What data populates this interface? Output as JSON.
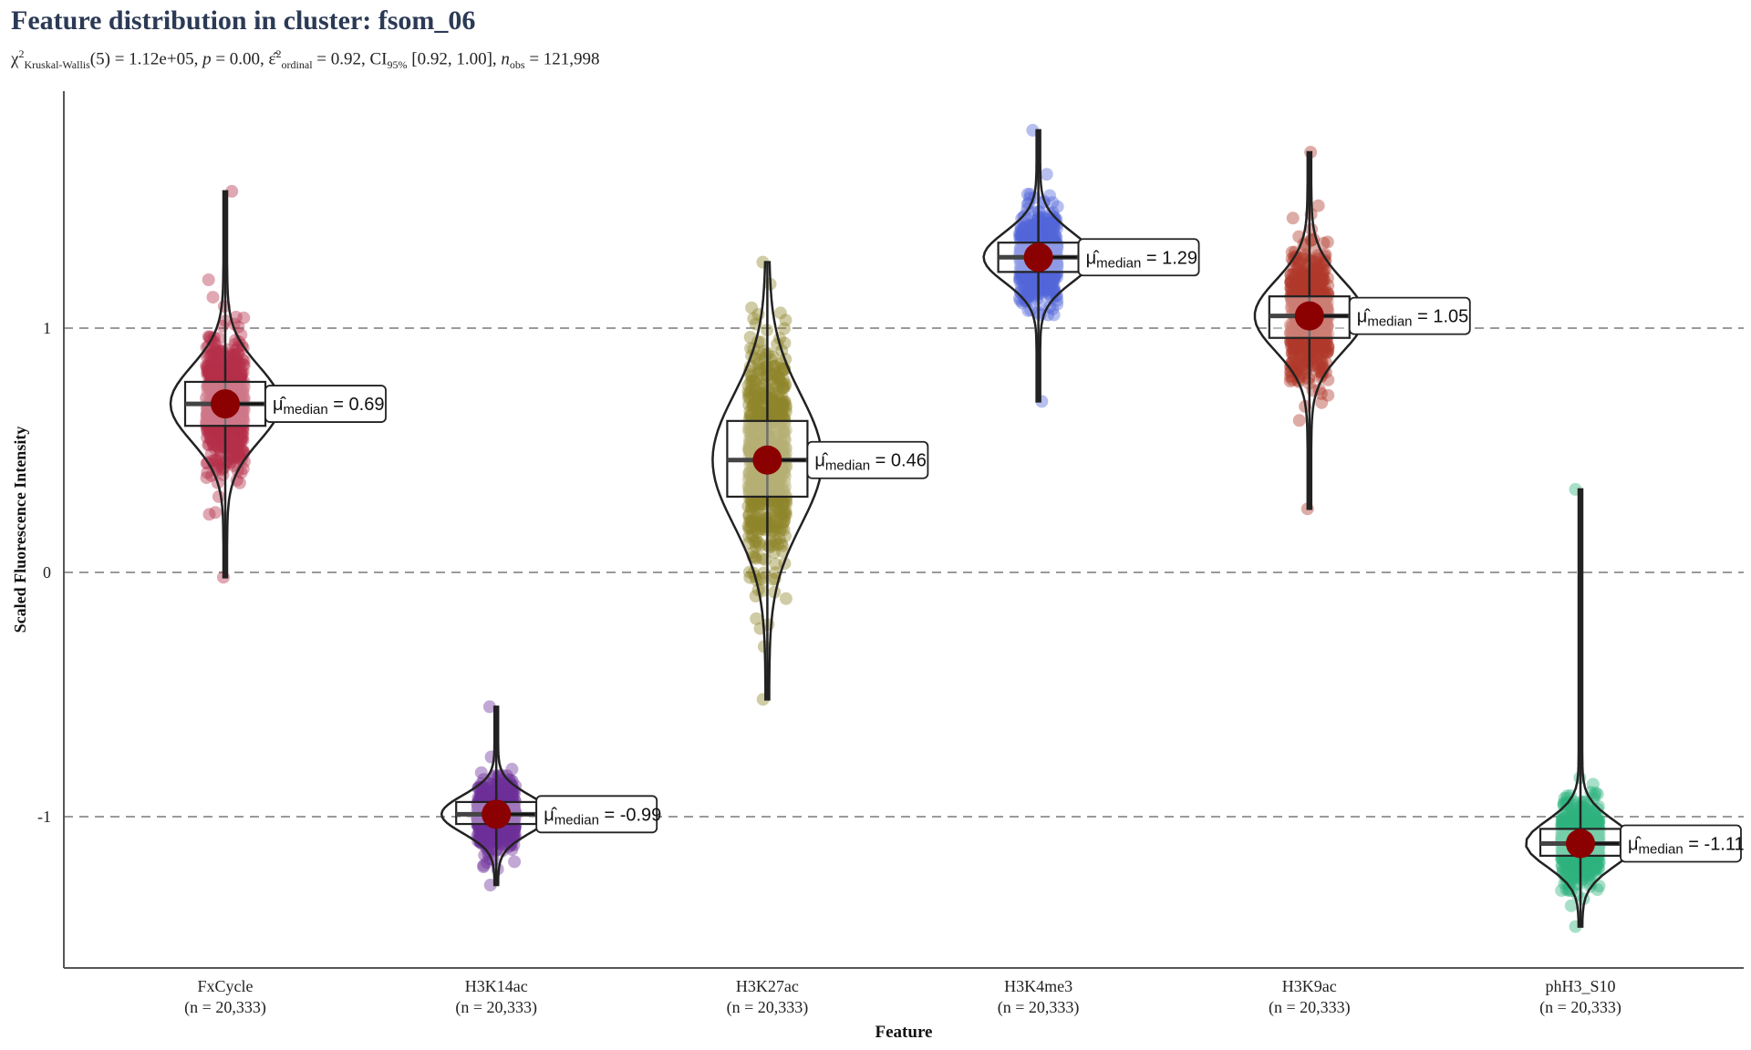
{
  "title": "Feature distribution in cluster: fsom_06",
  "subtitle": {
    "chi": "χ",
    "chi_sup": "2",
    "chi_sub": "Kruskal-Wallis",
    "df": "(5) = 1.12e+05, ",
    "p_label": "p",
    "p_value": " = 0.00, ",
    "eps": "ε̂",
    "eps_sup": "2",
    "eps_sub": "ordinal",
    "eps_value": " = 0.92, CI",
    "ci_sub": "95%",
    "ci_value": " [0.92, 1.00], ",
    "n_label": "n",
    "n_sub": "obs",
    "n_value": " = 121,998"
  },
  "chart_data": {
    "type": "violin",
    "xlabel": "Feature",
    "ylabel": "Scaled Fluorescence Intensity",
    "ylim": [
      -1.6,
      2.0
    ],
    "yticks": [
      -1,
      0,
      1
    ],
    "grid": "dashed horizontal lines at y ticks",
    "label_prefix": "μ̂",
    "label_sub": "median",
    "categories": [
      {
        "name": "FxCycle",
        "n_label": "(n = 20,333)",
        "color": "#b5304a",
        "median": 0.69,
        "q1": 0.6,
        "q3": 0.78,
        "min": -0.02,
        "max": 1.56,
        "label": " = 0.69"
      },
      {
        "name": "H3K14ac",
        "n_label": "(n = 20,333)",
        "color": "#6e2f99",
        "median": -0.99,
        "q1": -1.03,
        "q3": -0.94,
        "min": -1.28,
        "max": -0.55,
        "label": " = -0.99"
      },
      {
        "name": "H3K27ac",
        "n_label": "(n = 20,333)",
        "color": "#8f862a",
        "median": 0.46,
        "q1": 0.31,
        "q3": 0.62,
        "min": -0.52,
        "max": 1.27,
        "label": " = 0.46"
      },
      {
        "name": "H3K4me3",
        "n_label": "(n = 20,333)",
        "color": "#5366d8",
        "median": 1.29,
        "q1": 1.23,
        "q3": 1.35,
        "min": 0.7,
        "max": 1.81,
        "label": " = 1.29"
      },
      {
        "name": "H3K9ac",
        "n_label": "(n = 20,333)",
        "color": "#b03a2a",
        "median": 1.05,
        "q1": 0.96,
        "q3": 1.13,
        "min": 0.26,
        "max": 1.72,
        "label": " = 1.05"
      },
      {
        "name": "phH3_S10",
        "n_label": "(n = 20,333)",
        "color": "#2fb27e",
        "median": -1.11,
        "q1": -1.16,
        "q3": -1.05,
        "min": -1.45,
        "max": 0.34,
        "label": " = -1.11"
      }
    ]
  }
}
